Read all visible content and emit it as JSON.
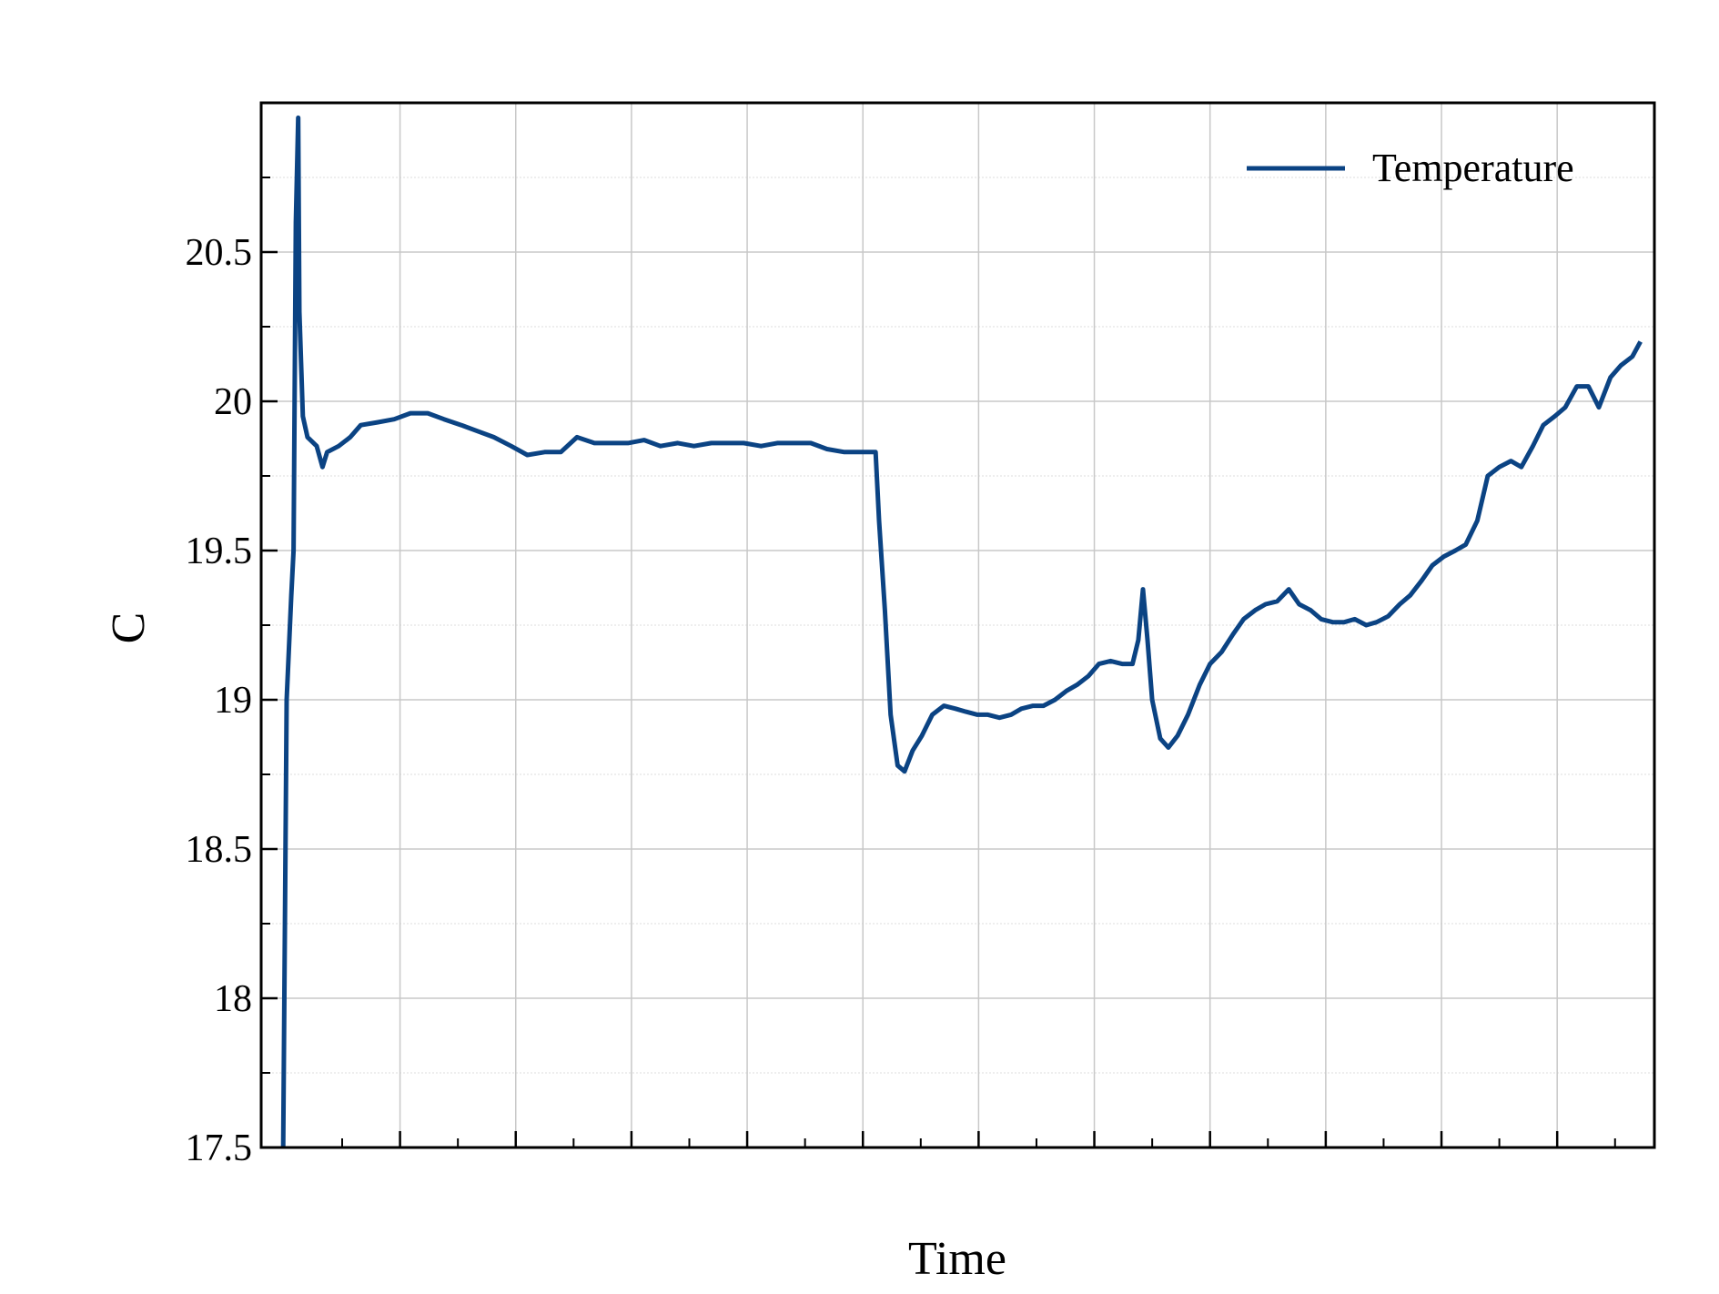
{
  "chart_data": {
    "type": "line",
    "xlabel": "Time",
    "ylabel": "C",
    "x": [
      -0.1,
      0.2,
      0.6,
      0.8,
      1.0,
      1.2,
      1.3,
      1.6,
      2.0,
      2.8,
      3.3,
      3.7,
      4.7,
      5.7,
      6.6,
      8.1,
      9.5,
      10.9,
      12.4,
      13.8,
      15.3,
      16.7,
      18.1,
      19.6,
      21.0,
      22.5,
      23.9,
      25.3,
      26.8,
      28.2,
      29.7,
      31.1,
      32.5,
      34.0,
      35.4,
      36.9,
      38.3,
      39.7,
      41.2,
      42.6,
      44.0,
      45.5,
      46.9,
      48.4,
      49.8,
      51.1,
      51.4,
      51.9,
      52.4,
      53.0,
      53.6,
      54.3,
      55.1,
      56.0,
      57.0,
      58.0,
      58.9,
      59.9,
      60.8,
      61.8,
      62.8,
      63.7,
      64.7,
      65.6,
      66.6,
      67.6,
      68.5,
      69.5,
      70.4,
      71.4,
      72.4,
      73.3,
      73.8,
      74.2,
      74.6,
      75.0,
      75.7,
      76.4,
      77.2,
      78.1,
      79.1,
      80.0,
      81.0,
      82.0,
      82.9,
      83.9,
      84.8,
      85.8,
      86.8,
      87.7,
      88.7,
      89.6,
      90.6,
      91.6,
      92.5,
      93.5,
      94.4,
      95.4,
      96.4,
      97.3,
      98.3,
      99.2,
      100.2,
      101.2,
      102.1,
      103.1,
      104.0,
      105.0,
      106.0,
      106.9,
      107.9,
      108.8,
      109.8,
      110.7,
      111.7,
      112.7,
      113.6,
      114.6,
      115.5,
      116.5,
      117.2
    ],
    "series": [
      {
        "name": "Temperature",
        "color": "#0b4383",
        "values": [
          17.5,
          19.0,
          19.35,
          19.5,
          20.6,
          20.95,
          20.3,
          19.95,
          19.88,
          19.85,
          19.78,
          19.83,
          19.85,
          19.88,
          19.92,
          19.93,
          19.94,
          19.96,
          19.96,
          19.94,
          19.92,
          19.9,
          19.88,
          19.85,
          19.82,
          19.83,
          19.83,
          19.88,
          19.86,
          19.86,
          19.86,
          19.87,
          19.85,
          19.86,
          19.85,
          19.86,
          19.86,
          19.86,
          19.85,
          19.86,
          19.86,
          19.86,
          19.84,
          19.83,
          19.83,
          19.83,
          19.6,
          19.3,
          18.95,
          18.78,
          18.76,
          18.83,
          18.88,
          18.95,
          18.98,
          18.97,
          18.96,
          18.95,
          18.95,
          18.94,
          18.95,
          18.97,
          18.98,
          18.98,
          19.0,
          19.03,
          19.05,
          19.08,
          19.12,
          19.13,
          19.12,
          19.12,
          19.2,
          19.37,
          19.2,
          19.0,
          18.87,
          18.84,
          18.88,
          18.95,
          19.05,
          19.12,
          19.16,
          19.22,
          19.27,
          19.3,
          19.32,
          19.33,
          19.37,
          19.32,
          19.3,
          19.27,
          19.26,
          19.26,
          19.27,
          19.25,
          19.26,
          19.28,
          19.32,
          19.35,
          19.4,
          19.45,
          19.48,
          19.5,
          19.52,
          19.6,
          19.75,
          19.78,
          19.8,
          19.78,
          19.85,
          19.92,
          19.95,
          19.98,
          20.05,
          20.05,
          19.98,
          20.08,
          20.12,
          20.15,
          20.2
        ]
      }
    ],
    "xlim": [
      -2,
      118.4
    ],
    "xticks": [
      10,
      20,
      30,
      40,
      50,
      60,
      70,
      80,
      90,
      100,
      110
    ],
    "xminorticks": [
      0,
      5,
      15,
      25,
      35,
      45,
      55,
      65,
      75,
      85,
      95,
      105,
      115
    ],
    "ylim": [
      17.5,
      21.0
    ],
    "yticks": [
      {
        "value": 17.5,
        "label": "17.5"
      },
      18,
      18.5,
      19,
      19.5,
      20,
      20.5
    ],
    "yminorticks": [
      17.75,
      18.25,
      18.75,
      19.25,
      19.75,
      20.25,
      20.75
    ],
    "grid": true,
    "legend": "upper right"
  }
}
